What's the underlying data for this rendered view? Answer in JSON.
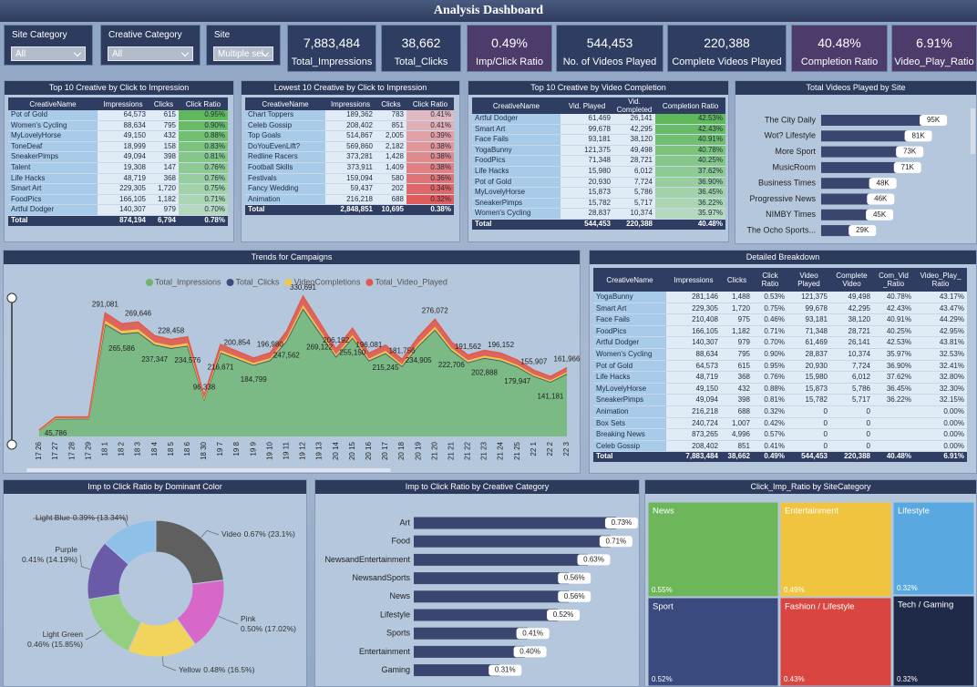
{
  "header": {
    "title": "Analysis Dashboard"
  },
  "slicers": [
    {
      "label": "Site Category",
      "value": "All"
    },
    {
      "label": "Creative Category",
      "value": "All"
    },
    {
      "label": "Site",
      "value": "Multiple sel..."
    }
  ],
  "kpis": [
    {
      "value": "7,883,484",
      "label": "Total_Impressions",
      "color": "#2e3d61"
    },
    {
      "value": "38,662",
      "label": "Total_Clicks",
      "color": "#2e3d61"
    },
    {
      "value": "0.49%",
      "label": "Imp/Click Ratio",
      "color": "#4b3c6b"
    },
    {
      "value": "544,453",
      "label": "No. of Videos Played",
      "color": "#2e3d61"
    },
    {
      "value": "220,388",
      "label": "Complete Videos Played",
      "color": "#2e3d61"
    },
    {
      "value": "40.48%",
      "label": "Completion Ratio",
      "color": "#4b3c6b"
    },
    {
      "value": "6.91%",
      "label": "Video_Play_Ratio",
      "color": "#4b3c6b"
    }
  ],
  "tables": [
    {
      "title": "Top 10 Creative by Click to Impression",
      "highlight_color": "#5fb85a",
      "columns": [
        "CreativeName",
        "Impressions",
        "Clicks",
        "Click Ratio"
      ],
      "rows": [
        [
          "Pot of Gold",
          "64,573",
          "615",
          "0.95%"
        ],
        [
          "Women's Cycling",
          "88,634",
          "795",
          "0.90%"
        ],
        [
          "MyLovelyHorse",
          "49,150",
          "432",
          "0.88%"
        ],
        [
          "ToneDeaf",
          "18,999",
          "158",
          "0.83%"
        ],
        [
          "SneakerPimps",
          "49,094",
          "398",
          "0.81%"
        ],
        [
          "Talent",
          "19,308",
          "147",
          "0.76%"
        ],
        [
          "Life Hacks",
          "48,719",
          "368",
          "0.76%"
        ],
        [
          "Smart Art",
          "229,305",
          "1,720",
          "0.75%"
        ],
        [
          "FoodPics",
          "166,105",
          "1,182",
          "0.71%"
        ],
        [
          "Artful Dodger",
          "140,307",
          "979",
          "0.70%"
        ]
      ],
      "total": [
        "Total",
        "874,194",
        "6,794",
        "0.78%"
      ]
    },
    {
      "title": "Lowest 10 Creative by Click to Impression",
      "highlight_color": "#e05c5c",
      "columns": [
        "CreativeName",
        "Impressions",
        "Clicks",
        "Click Ratio"
      ],
      "rows": [
        [
          "Chart Toppers",
          "189,362",
          "783",
          "0.41%"
        ],
        [
          "Celeb Gossip",
          "208,402",
          "851",
          "0.41%"
        ],
        [
          "Top Goals",
          "514,867",
          "2,005",
          "0.39%"
        ],
        [
          "DoYouEvenLift?",
          "569,860",
          "2,182",
          "0.38%"
        ],
        [
          "Redline Racers",
          "373,281",
          "1,428",
          "0.38%"
        ],
        [
          "Football Skills",
          "373,911",
          "1,409",
          "0.38%"
        ],
        [
          "Festivals",
          "159,094",
          "580",
          "0.36%"
        ],
        [
          "Fancy Wedding",
          "59,437",
          "202",
          "0.34%"
        ],
        [
          "Animation",
          "216,218",
          "688",
          "0.32%"
        ]
      ],
      "total": [
        "Total",
        "2,848,851",
        "10,695",
        "0.38%"
      ]
    },
    {
      "title": "Top 10 Creative by Video Completion",
      "highlight_color": "#5fb85a",
      "columns": [
        "CreativeName",
        "Vid. Played",
        "Vid. Completed",
        "Completion Ratio"
      ],
      "rows": [
        [
          "Artful Dodger",
          "61,469",
          "26,141",
          "42.53%"
        ],
        [
          "Smart Art",
          "99,678",
          "42,295",
          "42.43%"
        ],
        [
          "Face Fails",
          "93,181",
          "38,120",
          "40.91%"
        ],
        [
          "YogaBunny",
          "121,375",
          "49,498",
          "40.78%"
        ],
        [
          "FoodPics",
          "71,348",
          "28,721",
          "40.25%"
        ],
        [
          "Life Hacks",
          "15,980",
          "6,012",
          "37.62%"
        ],
        [
          "Pot of Gold",
          "20,930",
          "7,724",
          "36.90%"
        ],
        [
          "MyLovelyHorse",
          "15,873",
          "5,786",
          "36.45%"
        ],
        [
          "SneakerPimps",
          "15,782",
          "5,717",
          "36.22%"
        ],
        [
          "Women's Cycling",
          "28,837",
          "10,374",
          "35.97%"
        ]
      ],
      "total": [
        "Total",
        "544,453",
        "220,388",
        "40.48%"
      ]
    },
    {
      "title": "Detailed Breakdown",
      "columns": [
        "CreativeName",
        "Impressions",
        "Clicks",
        "Click Ratio",
        "Video Played",
        "Complete Video",
        "Com_Vid _Ratio",
        "Video_Play_ Ratio"
      ],
      "rows": [
        [
          "YogaBunny",
          "281,146",
          "1,488",
          "0.53%",
          "121,375",
          "49,498",
          "40.78%",
          "43.17%"
        ],
        [
          "Smart Art",
          "229,305",
          "1,720",
          "0.75%",
          "99,678",
          "42,295",
          "42.43%",
          "43.47%"
        ],
        [
          "Face Fails",
          "210,408",
          "975",
          "0.46%",
          "93,181",
          "38,120",
          "40.91%",
          "44.29%"
        ],
        [
          "FoodPics",
          "166,105",
          "1,182",
          "0.71%",
          "71,348",
          "28,721",
          "40.25%",
          "42.95%"
        ],
        [
          "Artful Dodger",
          "140,307",
          "979",
          "0.70%",
          "61,469",
          "26,141",
          "42.53%",
          "43.81%"
        ],
        [
          "Women's Cycling",
          "88,634",
          "795",
          "0.90%",
          "28,837",
          "10,374",
          "35.97%",
          "32.53%"
        ],
        [
          "Pot of Gold",
          "64,573",
          "615",
          "0.95%",
          "20,930",
          "7,724",
          "36.90%",
          "32.41%"
        ],
        [
          "Life Hacks",
          "48,719",
          "368",
          "0.76%",
          "15,980",
          "6,012",
          "37.62%",
          "32.80%"
        ],
        [
          "MyLovelyHorse",
          "49,150",
          "432",
          "0.88%",
          "15,873",
          "5,786",
          "36.45%",
          "32.30%"
        ],
        [
          "SneakerPimps",
          "49,094",
          "398",
          "0.81%",
          "15,782",
          "5,717",
          "36.22%",
          "32.15%"
        ],
        [
          "Animation",
          "216,218",
          "688",
          "0.32%",
          "0",
          "0",
          null,
          "0.00%"
        ],
        [
          "Box Sets",
          "240,724",
          "1,007",
          "0.42%",
          "0",
          "0",
          null,
          "0.00%"
        ],
        [
          "Breaking News",
          "873,265",
          "4,996",
          "0.57%",
          "0",
          "0",
          null,
          "0.00%"
        ],
        [
          "Celeb Gossip",
          "208,402",
          "851",
          "0.41%",
          "0",
          "0",
          null,
          "0.00%"
        ]
      ],
      "total": [
        "Total",
        "7,883,484",
        "38,662",
        "0.49%",
        "544,453",
        "220,388",
        "40.48%",
        "6.91%"
      ]
    }
  ],
  "chart_data": [
    {
      "type": "hbar",
      "title": "Total Videos Played by Site",
      "color": "#3a4670",
      "categories": [
        "The City Daily",
        "Wot? Lifestyle",
        "More Sport",
        "MusicRoom",
        "Business Times",
        "Progressive News",
        "NIMBY Times",
        "The Ocho Sports..."
      ],
      "values": [
        95000,
        81000,
        73000,
        71000,
        48000,
        46000,
        45000,
        29000
      ],
      "value_labels": [
        "95K",
        "81K",
        "73K",
        "71K",
        "48K",
        "46K",
        "45K",
        "29K"
      ]
    },
    {
      "type": "stacked_area",
      "title": "Trends for Campaigns",
      "categories": [
        "17 26",
        "17 27",
        "17 28",
        "17 29",
        "18 1",
        "18 2",
        "18 3",
        "18 4",
        "18 5",
        "18 6",
        "18 30",
        "19 7",
        "19 8",
        "19 9",
        "19 10",
        "19 11",
        "19 12",
        "19 13",
        "20 14",
        "20 15",
        "20 16",
        "20 17",
        "20 18",
        "20 19",
        "21 20",
        "21 21",
        "21 22",
        "21 23",
        "21 24",
        "21 25",
        "22 1",
        "22 2",
        "22 3"
      ],
      "series": [
        {
          "name": "Total_Impressions",
          "color": "#6db56f",
          "values": [
            15000,
            45786,
            46000,
            46000,
            291081,
            265586,
            269646,
            237347,
            228458,
            234576,
            96338,
            216671,
            200854,
            184799,
            196980,
            247562,
            330691,
            269122,
            206192,
            255150,
            196081,
            215245,
            181756,
            234905,
            276072,
            222706,
            191562,
            202888,
            196152,
            179947,
            155907,
            141181,
            161966
          ],
          "value_labels": [
            null,
            "45,786",
            null,
            null,
            "291,081",
            "265,586",
            "269,646",
            "237,347",
            "228,458",
            "234,576",
            "96,338",
            "216,671",
            "200,854",
            "184,799",
            "196,980",
            "247,562",
            "330,691",
            "269,122",
            "206,192",
            "255,150",
            "196,081",
            "215,245",
            "181,756",
            "234,905",
            "276,072",
            "222,706",
            "191,562",
            "202,888",
            "196,152",
            "179,947",
            "155,907",
            "141,181",
            "161,966"
          ]
        },
        {
          "name": "Total_Clicks",
          "color": "#3d4d80",
          "values": [
            80,
            230,
            230,
            230,
            1460,
            1330,
            1350,
            1190,
            1140,
            1170,
            480,
            1080,
            1000,
            920,
            980,
            1240,
            1650,
            1350,
            1030,
            1280,
            980,
            1080,
            910,
            1170,
            1380,
            1110,
            960,
            1010,
            980,
            900,
            780,
            710,
            810
          ]
        },
        {
          "name": "VideoCompletions",
          "color": "#f0c94a",
          "values": [
            400,
            1300,
            1300,
            1300,
            8200,
            7400,
            7600,
            6600,
            6400,
            6600,
            2700,
            6100,
            5600,
            5200,
            5500,
            6900,
            9300,
            7500,
            5800,
            7100,
            5500,
            6000,
            5100,
            6600,
            7700,
            6200,
            5400,
            5700,
            5500,
            5000,
            4400,
            4000,
            4500
          ]
        },
        {
          "name": "Total_Video_Played",
          "color": "#e05a4f",
          "values": [
            1100,
            3200,
            3200,
            3200,
            20400,
            18600,
            18900,
            16600,
            16000,
            16400,
            6700,
            15200,
            14100,
            12900,
            13800,
            17300,
            23100,
            18800,
            14400,
            17900,
            13700,
            15100,
            12700,
            16400,
            19300,
            15600,
            13400,
            14200,
            13700,
            12600,
            10900,
            9900,
            11300
          ]
        }
      ]
    },
    {
      "type": "donut",
      "title": "Imp to Click Ratio by Dominant Color",
      "categories": [
        "Video",
        "Pink",
        "Yellow",
        "Light Green",
        "Purple",
        "Light Blue"
      ],
      "values": [
        0.67,
        0.5,
        0.48,
        0.46,
        0.41,
        0.39
      ],
      "value_labels": [
        "0.67% (23.1%)",
        "0.50% (17.02%)",
        "0.48% (16.5%)",
        "0.46% (15.85%)",
        "0.41% (14.19%)",
        "0.39% (13.34%)"
      ],
      "colors": [
        "#5f5f5f",
        "#d767c8",
        "#f2d35b",
        "#93cf80",
        "#6b5aa8",
        "#8fc1e8"
      ]
    },
    {
      "type": "hbar",
      "title": "Imp to Click Ratio by Creative Category",
      "color": "#3a4670",
      "categories": [
        "Art",
        "Food",
        "NewsandEntertainment",
        "NewsandSports",
        "News",
        "Lifestyle",
        "Sports",
        "Entertainment",
        "Gaming"
      ],
      "values": [
        0.73,
        0.71,
        0.63,
        0.56,
        0.56,
        0.52,
        0.41,
        0.4,
        0.31
      ],
      "value_labels": [
        "0.73%",
        "0.71%",
        "0.63%",
        "0.56%",
        "0.56%",
        "0.52%",
        "0.41%",
        "0.40%",
        "0.31%"
      ]
    },
    {
      "type": "treemap",
      "title": "Click_Imp_Ratio by SiteCategory",
      "categories": [
        "News",
        "Entertainment",
        "Lifestyle",
        "Sport",
        "Fashion / Lifestyle",
        "Tech / Gaming"
      ],
      "values": [
        0.55,
        0.49,
        0.32,
        0.52,
        0.43,
        0.32
      ],
      "value_labels": [
        "0.55%",
        "0.49%",
        "0.32%",
        "0.52%",
        "0.43%",
        "0.32%"
      ],
      "colors": [
        "#6db75a",
        "#f0c43f",
        "#5aa8e0",
        "#3a4a7e",
        "#d8463f",
        "#1f2a48"
      ]
    }
  ]
}
